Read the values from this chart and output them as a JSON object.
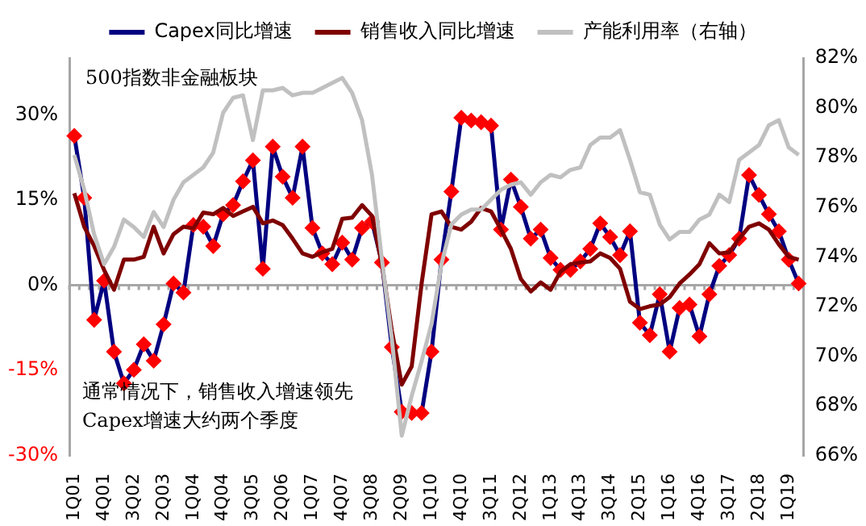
{
  "chart_data": {
    "type": "line",
    "categories": [
      "1Q01",
      null,
      null,
      "4Q01",
      null,
      null,
      "3Q02",
      null,
      null,
      "2Q03",
      null,
      null,
      "1Q04",
      null,
      null,
      "4Q04",
      null,
      null,
      "3Q05",
      null,
      null,
      "2Q06",
      null,
      null,
      "1Q07",
      null,
      null,
      "4Q07",
      null,
      null,
      "3Q08",
      null,
      null,
      "2Q09",
      null,
      null,
      "1Q10",
      null,
      null,
      "4Q10",
      null,
      null,
      "3Q11",
      null,
      null,
      "2Q12",
      null,
      null,
      "1Q13",
      null,
      null,
      "4Q13",
      null,
      null,
      "3Q14",
      null,
      null,
      "2Q15",
      null,
      null,
      "1Q16",
      null,
      null,
      "4Q16",
      null,
      null,
      "3Q17",
      null,
      null,
      "2Q18",
      null,
      null,
      "1Q19",
      null
    ],
    "series": [
      {
        "name": "Capex同比增速",
        "color": "#000080",
        "marker": "diamond",
        "values": [
          26.3,
          15.4,
          -6.1,
          0.8,
          -11.7,
          -17.3,
          -14.9,
          -10.4,
          -13.3,
          -6.9,
          0.3,
          -1.3,
          10.6,
          10.3,
          6.9,
          12.5,
          14.1,
          18.3,
          22.0,
          2.9,
          24.4,
          19.1,
          15.4,
          24.4,
          10.1,
          5.6,
          3.7,
          7.5,
          4.5,
          10.1,
          11.2,
          4.0,
          -10.9,
          -22.3,
          -22.5,
          -22.5,
          -11.7,
          4.5,
          16.5,
          29.5,
          29.0,
          28.7,
          28.1,
          9.8,
          18.6,
          13.8,
          8.2,
          9.8,
          4.8,
          2.7,
          2.7,
          4.2,
          6.4,
          10.9,
          8.5,
          5.3,
          9.5,
          -6.6,
          -8.8,
          -1.6,
          -11.7,
          -4.0,
          -3.4,
          -9.0,
          -1.6,
          3.4,
          5.3,
          8.2,
          19.4,
          15.9,
          12.5,
          9.5,
          4.5,
          0.3
        ]
      },
      {
        "name": "销售收入同比增速",
        "color": "#7f0000",
        "marker": "none",
        "values": [
          16.2,
          10.3,
          6.9,
          2.7,
          -0.8,
          4.5,
          4.5,
          5.0,
          10.3,
          5.6,
          9.0,
          10.3,
          10.0,
          12.8,
          12.5,
          13.6,
          12.2,
          13.0,
          13.8,
          10.9,
          11.4,
          10.6,
          8.2,
          5.6,
          5.0,
          5.8,
          6.4,
          11.7,
          11.9,
          14.1,
          12.2,
          3.7,
          -8.0,
          -17.5,
          -14.3,
          0.3,
          12.5,
          13.0,
          10.3,
          9.8,
          11.2,
          13.6,
          13.0,
          9.8,
          6.4,
          1.1,
          -1.1,
          0.5,
          -0.8,
          2.4,
          3.7,
          4.0,
          4.2,
          5.6,
          4.8,
          2.9,
          -2.9,
          -4.2,
          -3.7,
          -3.4,
          -2.1,
          0.3,
          1.9,
          3.7,
          7.4,
          5.6,
          5.8,
          8.2,
          10.3,
          10.9,
          9.8,
          7.2,
          5.0,
          4.5
        ]
      },
      {
        "name": "产能利用率（右轴）",
        "color": "#c0c0c0",
        "marker": "none",
        "axis": "y2",
        "values": [
          78.1,
          76.7,
          74.9,
          73.7,
          74.4,
          75.5,
          75.2,
          74.8,
          75.8,
          75.2,
          76.3,
          77.0,
          77.3,
          77.6,
          78.2,
          79.8,
          80.4,
          80.5,
          78.7,
          80.7,
          80.7,
          80.8,
          80.5,
          80.6,
          80.6,
          80.8,
          81.0,
          81.2,
          80.6,
          79.5,
          77.3,
          73.9,
          70.7,
          66.8,
          68.4,
          69.8,
          71.3,
          73.7,
          75.3,
          75.7,
          75.9,
          75.9,
          76.3,
          76.7,
          76.9,
          77.0,
          76.5,
          77.0,
          77.3,
          77.2,
          77.5,
          77.6,
          78.5,
          78.8,
          78.8,
          79.1,
          77.9,
          76.6,
          76.5,
          75.3,
          74.7,
          75.0,
          75.0,
          75.5,
          75.7,
          76.5,
          76.2,
          77.9,
          78.2,
          78.5,
          79.3,
          79.5,
          78.4,
          78.1
        ]
      }
    ],
    "ylim": [
      -30,
      40
    ],
    "yticks": [
      {
        "value": -30,
        "label": "-30%"
      },
      {
        "value": -15,
        "label": "-15%"
      },
      {
        "value": 0,
        "label": "0%"
      },
      {
        "value": 15,
        "label": "15%"
      },
      {
        "value": 30,
        "label": "30%"
      }
    ],
    "y2lim": [
      66,
      82
    ],
    "y2ticks": [
      {
        "value": 66,
        "label": "66%"
      },
      {
        "value": 68,
        "label": "68%"
      },
      {
        "value": 70,
        "label": "70%"
      },
      {
        "value": 72,
        "label": "72%"
      },
      {
        "value": 74,
        "label": "74%"
      },
      {
        "value": 76,
        "label": "76%"
      },
      {
        "value": 78,
        "label": "78%"
      },
      {
        "value": 80,
        "label": "80%"
      },
      {
        "value": 82,
        "label": "82%"
      }
    ],
    "ref_lines": [
      {
        "axis": "y",
        "value": 0,
        "color": "#a6a6a6"
      }
    ],
    "annotations": [
      "500指数非金融板块",
      "通常情况下，销售收入增速领先\nCapex增速大约两个季度"
    ],
    "legend": "top",
    "grid": false
  }
}
